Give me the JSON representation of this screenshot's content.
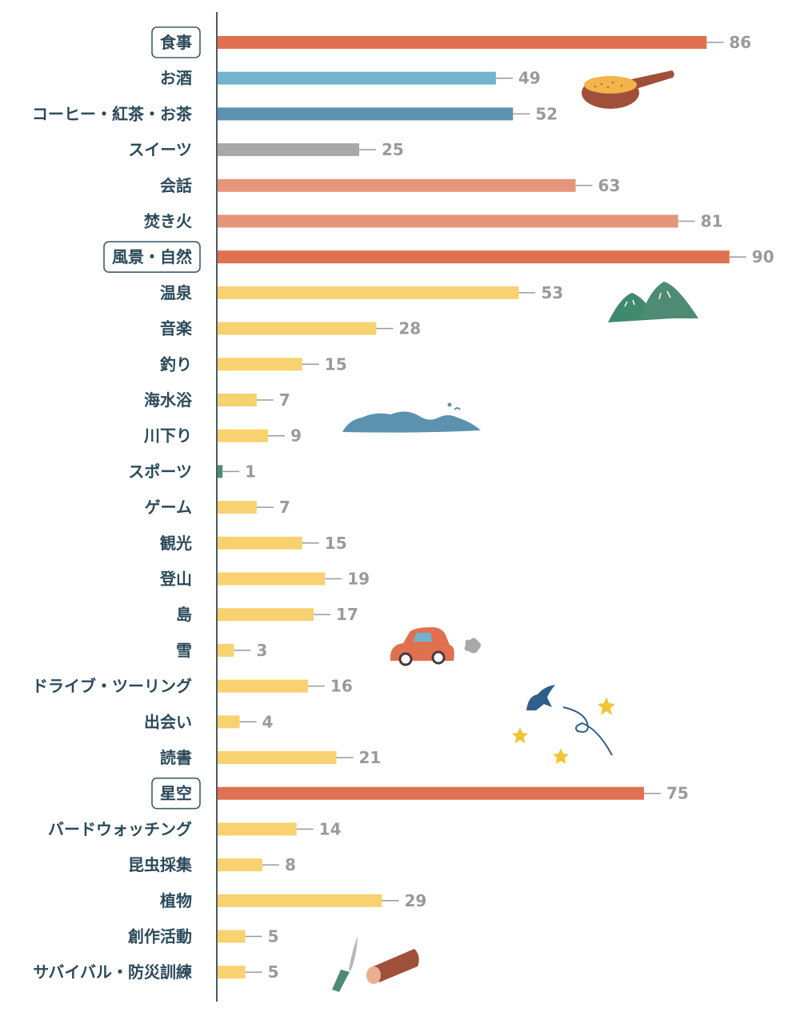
{
  "chart_data": {
    "type": "bar",
    "orientation": "horizontal",
    "title": "",
    "xlabel": "",
    "ylabel": "",
    "xlim": [
      0,
      90
    ],
    "grid": false,
    "legend": "none",
    "categories": [
      "食事",
      "お酒",
      "コーヒー・紅茶・お茶",
      "スイーツ",
      "会話",
      "焚き火",
      "風景・自然",
      "温泉",
      "音楽",
      "釣り",
      "海水浴",
      "川下り",
      "スポーツ",
      "ゲーム",
      "観光",
      "登山",
      "島",
      "雪",
      "ドライブ・ツーリング",
      "出会い",
      "読書",
      "星空",
      "バードウォッチング",
      "昆虫採集",
      "植物",
      "創作活動",
      "サバイバル・防災訓練"
    ],
    "values": [
      86,
      49,
      52,
      25,
      63,
      81,
      90,
      53,
      28,
      15,
      7,
      9,
      1,
      7,
      15,
      19,
      17,
      3,
      16,
      4,
      21,
      75,
      14,
      8,
      29,
      5,
      5
    ],
    "highlighted": [
      "食事",
      "風景・自然",
      "星空"
    ],
    "bar_colors": [
      "#e07150",
      "#72b4cb",
      "#5d91b0",
      "#a8a8a8",
      "#e5967a",
      "#e5967a",
      "#e07150",
      "#f8d270",
      "#f8d270",
      "#f8d270",
      "#f8d270",
      "#f8d270",
      "#4f8b74",
      "#f8d270",
      "#f8d270",
      "#f8d270",
      "#f8d270",
      "#f8d270",
      "#f8d270",
      "#f8d270",
      "#f8d270",
      "#e07150",
      "#f8d270",
      "#f8d270",
      "#f8d270",
      "#f8d270",
      "#f8d270"
    ]
  },
  "colors": {
    "axis": "#4a5a62",
    "label_text": "#2b4a5a",
    "value_text": "#9a9a9a",
    "highlight_border": "#3e5f6c"
  },
  "decorations": [
    "frying-pan-icon",
    "mountain-icon",
    "wave-icon",
    "car-icon",
    "bird-and-stars-icon",
    "knife-and-log-icon"
  ]
}
